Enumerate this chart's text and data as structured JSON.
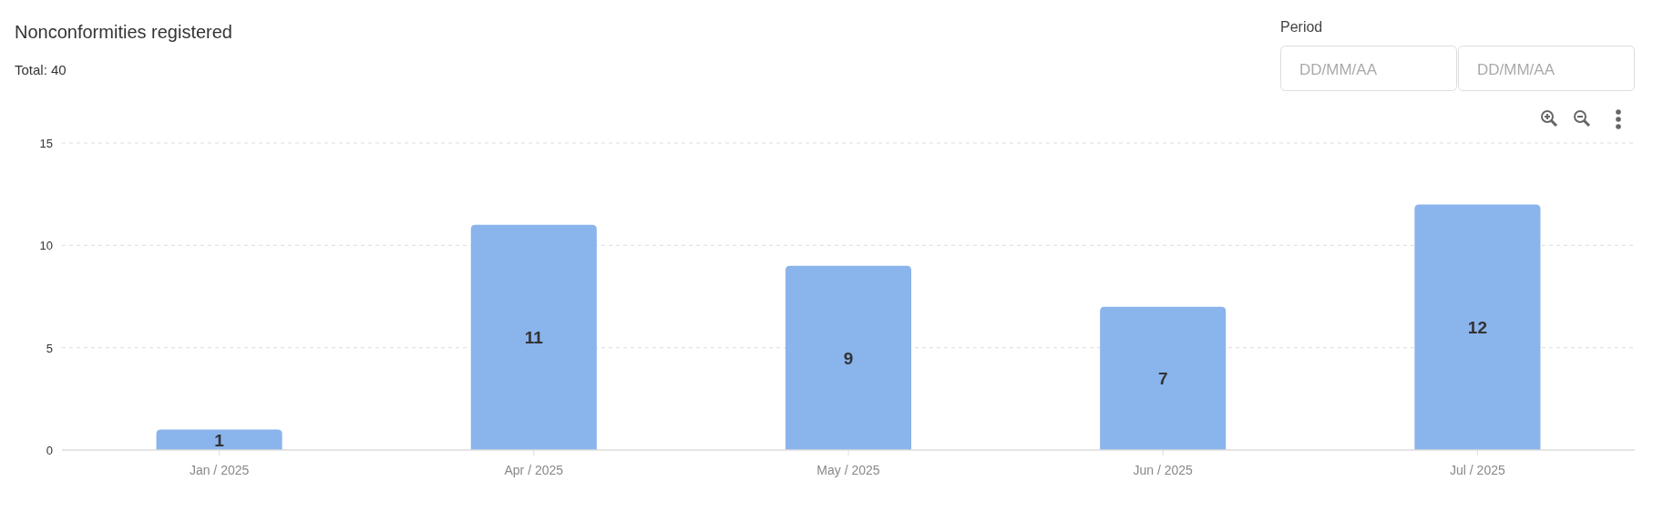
{
  "chart_data": {
    "type": "bar",
    "title": "Nonconformities registered",
    "subtitle": "Total: 40",
    "annotations": [
      "Period",
      "DD/MM/AA",
      "DD/MM/AA"
    ],
    "categories": [
      "Jan / 2025",
      "Apr / 2025",
      "May / 2025",
      "Jun / 2025",
      "Jul / 2025"
    ],
    "values": [
      1,
      11,
      9,
      7,
      12
    ],
    "color": "#8ab4ec",
    "ylim": [
      0,
      15
    ],
    "yticks": [
      0,
      5,
      10,
      15
    ],
    "grid": "y",
    "data_labels": true
  }
}
